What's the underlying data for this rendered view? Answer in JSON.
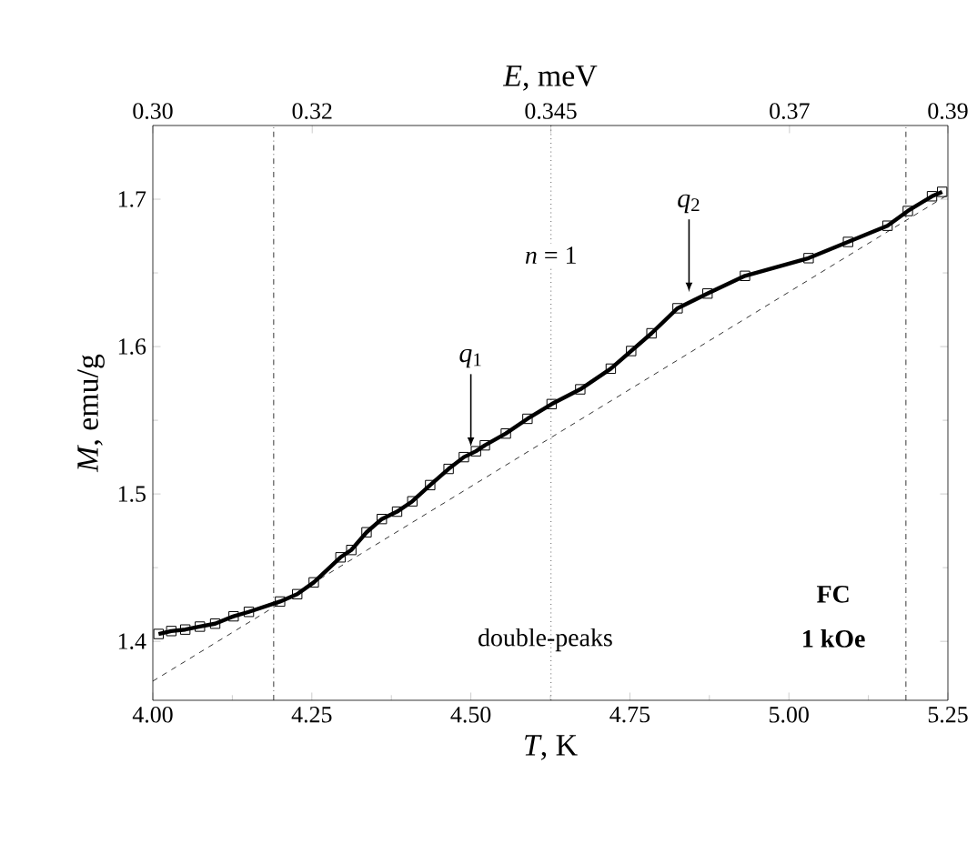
{
  "chart_data": {
    "type": "line",
    "xlabel": "*T*, K",
    "ylabel": "*M*, emu/g",
    "x2label": "*E*, meV",
    "xlim": [
      4.0,
      5.25
    ],
    "ylim": [
      1.36,
      1.75
    ],
    "xticks": [
      {
        "value": 4.0,
        "label": "4.00"
      },
      4.25,
      {
        "value": 4.5,
        "label": "4.50"
      },
      4.75,
      {
        "value": 5.0,
        "label": "5.00"
      },
      5.25
    ],
    "yticks": [
      1.4,
      1.5,
      1.6,
      1.7
    ],
    "x2lim": [
      0.3033,
      0.3866
    ],
    "x2ticks": [
      {
        "value": 0.3033,
        "label": "0.30"
      },
      0.32,
      0.345,
      0.37,
      {
        "value": 0.3866,
        "label": "0.39"
      }
    ],
    "series": [
      {
        "color": "#000000",
        "marker": "square",
        "line_style": "solid",
        "x": [
          4.009,
          4.029,
          4.051,
          4.074,
          4.098,
          4.127,
          4.151,
          4.2,
          4.227,
          4.253,
          4.295,
          4.312,
          4.336,
          4.36,
          4.384,
          4.408,
          4.436,
          4.465,
          4.489,
          4.508,
          4.522,
          4.555,
          4.589,
          4.627,
          4.672,
          4.72,
          4.752,
          4.784,
          4.825,
          4.872,
          4.931,
          5.031,
          5.093,
          5.155,
          5.187,
          5.225,
          5.241
        ],
        "values": [
          1.405,
          1.407,
          1.408,
          1.41,
          1.412,
          1.417,
          1.42,
          1.427,
          1.432,
          1.44,
          1.457,
          1.462,
          1.474,
          1.483,
          1.488,
          1.495,
          1.506,
          1.517,
          1.525,
          1.529,
          1.533,
          1.541,
          1.551,
          1.561,
          1.571,
          1.585,
          1.597,
          1.609,
          1.626,
          1.636,
          1.648,
          1.66,
          1.671,
          1.682,
          1.692,
          1.702,
          1.705
        ]
      },
      {
        "color": "#000000",
        "marker": "none",
        "line_style": "dashed",
        "x": [
          4.0,
          5.25
        ],
        "values": [
          1.373,
          1.703
        ]
      }
    ],
    "ref_lines": [
      {
        "axis": "x",
        "value": 4.19,
        "line_style": "dashdot"
      },
      {
        "axis": "x",
        "value": 4.626,
        "line_style": "dotted"
      },
      {
        "axis": "x",
        "value": 5.184,
        "line_style": "dashdot"
      }
    ],
    "annotations": [
      {
        "text": "*q*$_{1}$",
        "x": 4.5,
        "y": 1.527
      },
      {
        "text": "*q*$_{2}$",
        "x": 4.843,
        "y": 1.632
      },
      "*n* = 1",
      "double-peaks",
      "FC",
      "1 kOe"
    ],
    "grid": false
  }
}
